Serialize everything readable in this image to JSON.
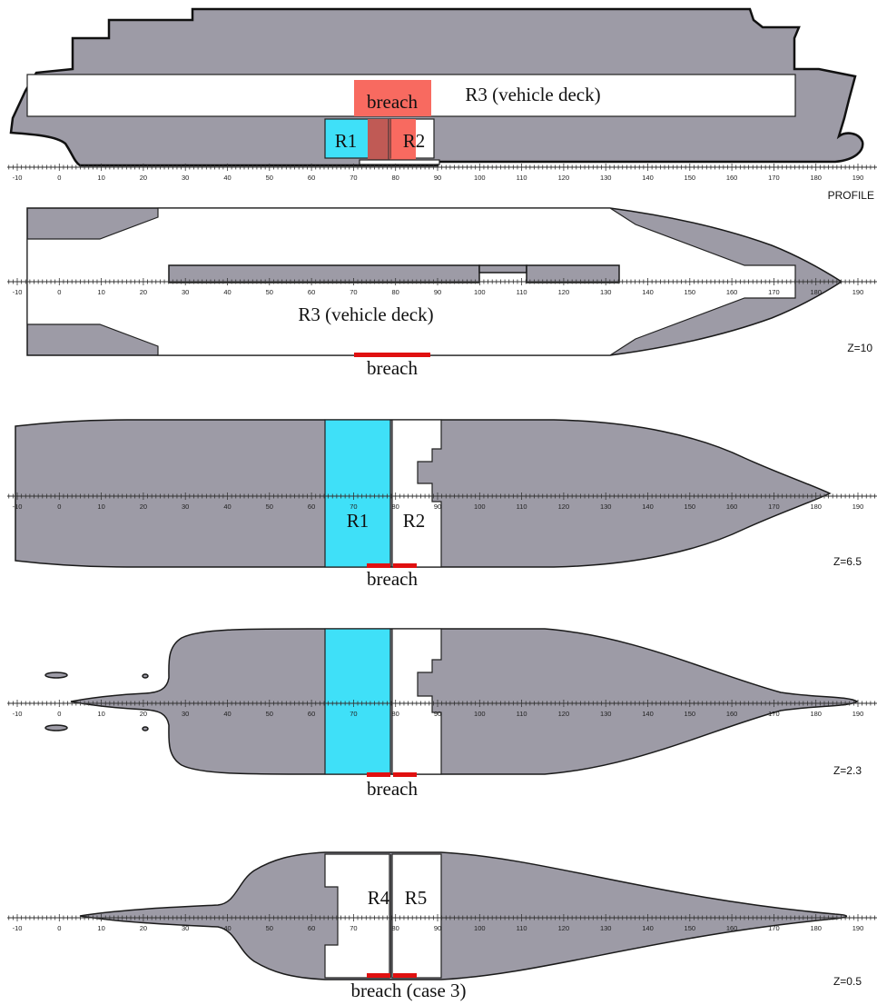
{
  "views": {
    "profile": {
      "view_label": "PROFILE",
      "labels": {
        "r3": "R3 (vehicle deck)",
        "breach": "breach",
        "r1": "R1",
        "r2": "R2"
      }
    },
    "z10": {
      "view_label": "Z=10",
      "labels": {
        "r3": "R3 (vehicle deck)",
        "breach": "breach"
      }
    },
    "z65": {
      "view_label": "Z=6.5",
      "labels": {
        "r1": "R1",
        "r2": "R2",
        "breach": "breach"
      }
    },
    "z23": {
      "view_label": "Z=2.3",
      "labels": {
        "breach": "breach"
      }
    },
    "z05": {
      "view_label": "Z=0.5",
      "labels": {
        "r4": "R4",
        "r5": "R5",
        "breach": "breach (case 3)"
      }
    }
  },
  "axis": {
    "min": -10,
    "max": 190,
    "label_step": 10
  },
  "colors": {
    "hull": "#9d9ba6",
    "room_flooded": "#3fe0f8",
    "breach": "#e01010",
    "breach_zone": "#f86a60"
  }
}
